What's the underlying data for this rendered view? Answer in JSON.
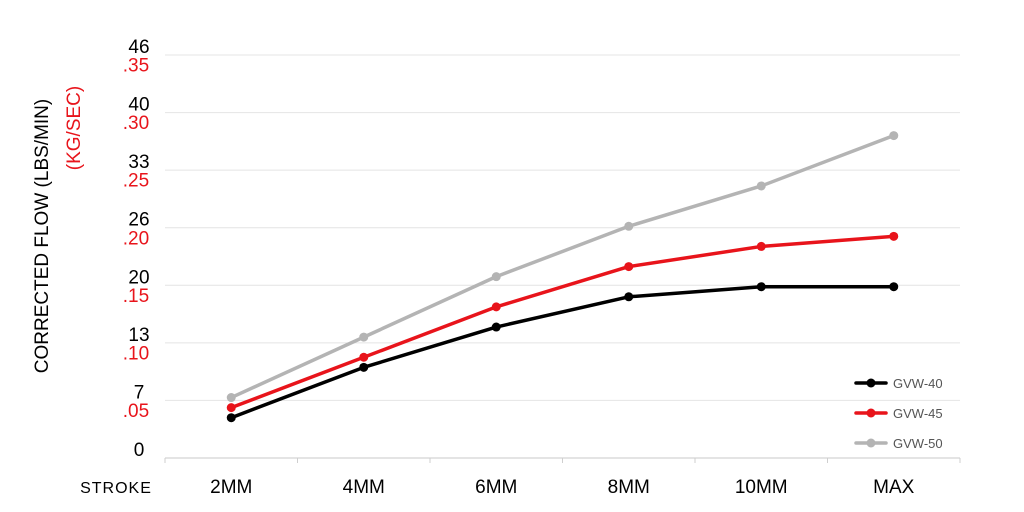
{
  "chart_data": {
    "type": "line",
    "title": "",
    "ylabel": "CORRECTED FLOW (LBS/MIN)",
    "ylabel_secondary": "(KG/SEC)",
    "xlabel": "STROKE",
    "categories": [
      "2MM",
      "4MM",
      "6MM",
      "8MM",
      "10MM",
      "MAX"
    ],
    "y_ticks_primary": [
      "0",
      "7",
      "13",
      "20",
      "26",
      "33",
      "40",
      "46"
    ],
    "y_ticks_secondary": [
      ".05",
      ".10",
      ".15",
      ".20",
      ".25",
      ".30",
      ".35"
    ],
    "ylim": [
      0,
      0.4
    ],
    "grid": true,
    "legend_position": "bottom-right",
    "series": [
      {
        "name": "GVW-40",
        "color": "#000000",
        "values": [
          0.04,
          0.09,
          0.13,
          0.16,
          0.17,
          0.17
        ]
      },
      {
        "name": "GVW-45",
        "color": "#e8141b",
        "values": [
          0.05,
          0.1,
          0.15,
          0.19,
          0.21,
          0.22
        ]
      },
      {
        "name": "GVW-50",
        "color": "#b4b4b4",
        "values": [
          0.06,
          0.12,
          0.18,
          0.23,
          0.27,
          0.32
        ]
      }
    ]
  }
}
